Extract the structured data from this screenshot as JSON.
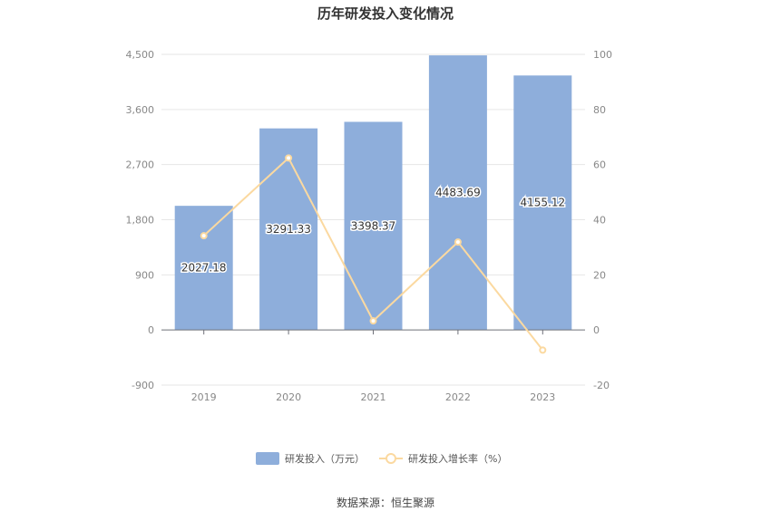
{
  "chart_data": {
    "type": "bar",
    "title": "历年研发投入变化情况",
    "categories": [
      "2019",
      "2020",
      "2021",
      "2022",
      "2023"
    ],
    "series": [
      {
        "name": "研发投入（万元）",
        "type": "bar",
        "axis": "left",
        "values": [
          2027.18,
          3291.33,
          3398.37,
          4483.69,
          4155.12
        ],
        "labels": [
          "2027.18",
          "3291.33",
          "3398.37",
          "4483.69",
          "4155.12"
        ],
        "color": "#8eaedb"
      },
      {
        "name": "研发投入增长率（%）",
        "type": "line",
        "axis": "right",
        "values": [
          34.2,
          62.4,
          3.3,
          31.9,
          -7.3
        ],
        "color": "#fbd9a0"
      }
    ],
    "y_left": {
      "min": -900,
      "max": 4500,
      "ticks": [
        "4,500",
        "3,600",
        "2,700",
        "1,800",
        "900",
        "0",
        "-900"
      ],
      "tick_values": [
        4500,
        3600,
        2700,
        1800,
        900,
        0,
        -900
      ]
    },
    "y_right": {
      "min": -20,
      "max": 100,
      "ticks": [
        "100",
        "80",
        "60",
        "40",
        "20",
        "0",
        "-20"
      ],
      "tick_values": [
        100,
        80,
        60,
        40,
        20,
        0,
        -20
      ]
    },
    "grid": true,
    "legend_position": "bottom-center"
  },
  "source": "数据来源：恒生聚源"
}
